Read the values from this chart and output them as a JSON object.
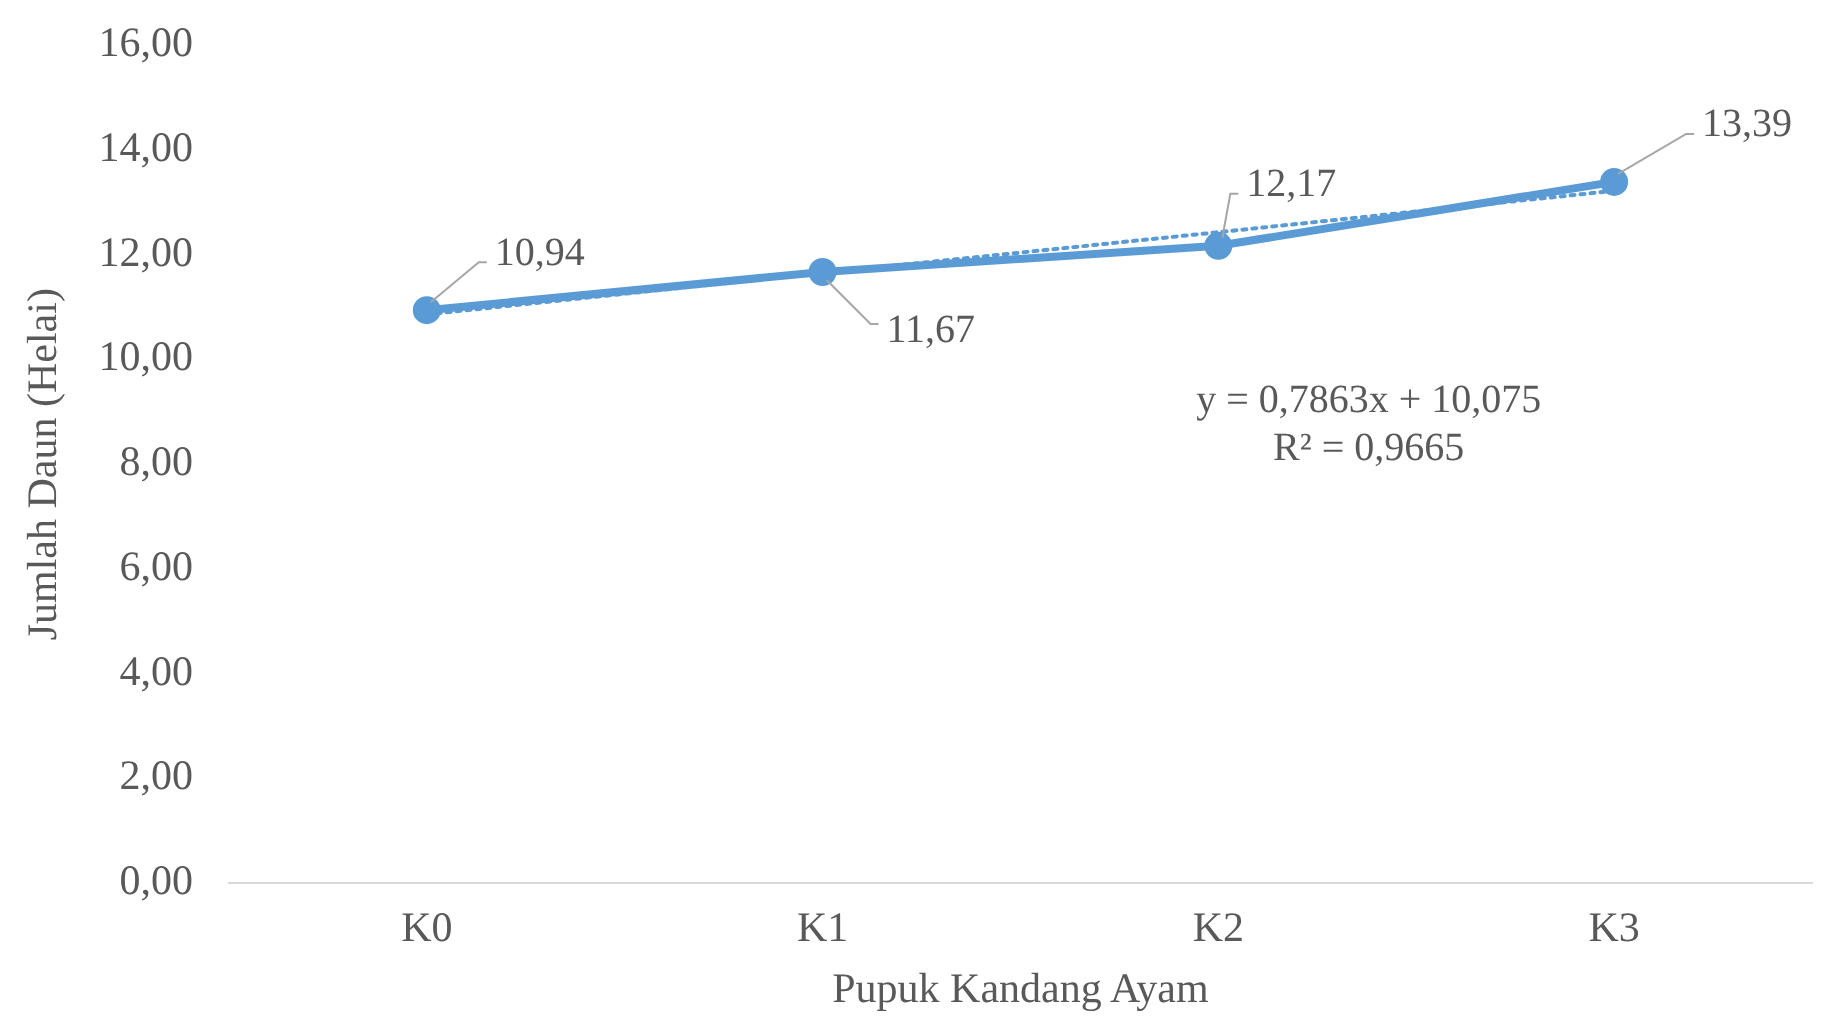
{
  "chart_data": {
    "type": "line",
    "xlabel": "Pupuk Kandang Ayam",
    "ylabel": "Jumlah Daun (Helai)",
    "categories": [
      "K0",
      "K1",
      "K2",
      "K3"
    ],
    "series": [
      {
        "color": "#5b9bd5",
        "values": [
          10.94,
          11.67,
          12.17,
          13.39
        ],
        "value_labels": [
          "10,94",
          "11,67",
          "12,17",
          "13,39"
        ],
        "marker": "circle",
        "line_style": "solid"
      },
      {
        "type": "line",
        "x": [
          "K0",
          "K1",
          "K2",
          "K3"
        ],
        "color": "#5b9bd5",
        "values": [
          10.86,
          11.65,
          12.43,
          13.22
        ],
        "line_style": "dotted"
      }
    ],
    "ylim": [
      0,
      16
    ],
    "yticks": [
      {
        "value": 0,
        "label": "0,00"
      },
      {
        "value": 2,
        "label": "2,00"
      },
      {
        "value": 4,
        "label": "4,00"
      },
      {
        "value": 6,
        "label": "6,00"
      },
      {
        "value": 8,
        "label": "8,00"
      },
      {
        "value": 10,
        "label": "10,00"
      },
      {
        "value": 12,
        "label": "12,00"
      },
      {
        "value": 14,
        "label": "14,00"
      },
      {
        "value": 16,
        "label": "16,00"
      }
    ],
    "grid": false,
    "legend": false,
    "annotations": [
      "y = 0,7863x + 10,075",
      "R² = 0,9665"
    ]
  }
}
